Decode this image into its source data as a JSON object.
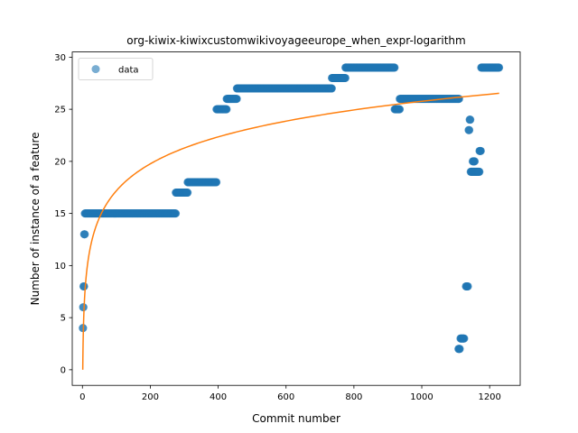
{
  "chart_data": {
    "type": "scatter",
    "title": "org-kiwix-kiwixcustomwikivoyageeurope_when_expr-logarithm",
    "xlabel": "Commit number",
    "ylabel": "Number of instance of a feature",
    "xlim": [
      -30,
      1290
    ],
    "ylim": [
      -1.5,
      30.5
    ],
    "xticks": [
      0,
      200,
      400,
      600,
      800,
      1000,
      1200
    ],
    "yticks": [
      0,
      5,
      10,
      15,
      20,
      25,
      30
    ],
    "grid": false,
    "legend": {
      "position": "upper-left",
      "entries": [
        "data"
      ]
    },
    "colors": {
      "data": "#1f77b4",
      "fit": "#ff7f0e"
    },
    "series": [
      {
        "name": "data",
        "kind": "scatter",
        "segments": [
          {
            "x_from": 1,
            "x_to": 2,
            "y": 4
          },
          {
            "x_from": 2,
            "x_to": 3,
            "y": 6
          },
          {
            "x_from": 3,
            "x_to": 5,
            "y": 8
          },
          {
            "x_from": 5,
            "x_to": 7,
            "y": 13
          },
          {
            "x_from": 7,
            "x_to": 275,
            "y": 15
          },
          {
            "x_from": 275,
            "x_to": 310,
            "y": 17
          },
          {
            "x_from": 310,
            "x_to": 395,
            "y": 18
          },
          {
            "x_from": 395,
            "x_to": 425,
            "y": 25
          },
          {
            "x_from": 425,
            "x_to": 455,
            "y": 26
          },
          {
            "x_from": 455,
            "x_to": 735,
            "y": 27
          },
          {
            "x_from": 735,
            "x_to": 775,
            "y": 28
          },
          {
            "x_from": 775,
            "x_to": 920,
            "y": 29
          },
          {
            "x_from": 920,
            "x_to": 935,
            "y": 25
          },
          {
            "x_from": 935,
            "x_to": 1110,
            "y": 26
          },
          {
            "x_from": 1108,
            "x_to": 1112,
            "y": 2
          },
          {
            "x_from": 1114,
            "x_to": 1125,
            "y": 3
          },
          {
            "x_from": 1130,
            "x_to": 1136,
            "y": 8
          },
          {
            "x_from": 1138,
            "x_to": 1140,
            "y": 23
          },
          {
            "x_from": 1141,
            "x_to": 1143,
            "y": 24
          },
          {
            "x_from": 1144,
            "x_to": 1170,
            "y": 19
          },
          {
            "x_from": 1150,
            "x_to": 1156,
            "y": 20
          },
          {
            "x_from": 1170,
            "x_to": 1174,
            "y": 21
          },
          {
            "x_from": 1175,
            "x_to": 1228,
            "y": 29
          }
        ]
      },
      {
        "name": "fit",
        "kind": "line",
        "model": "y = a + b*ln(x)",
        "a": 0.0,
        "b": 3.73,
        "x_range": [
          1,
          1228
        ]
      }
    ]
  }
}
